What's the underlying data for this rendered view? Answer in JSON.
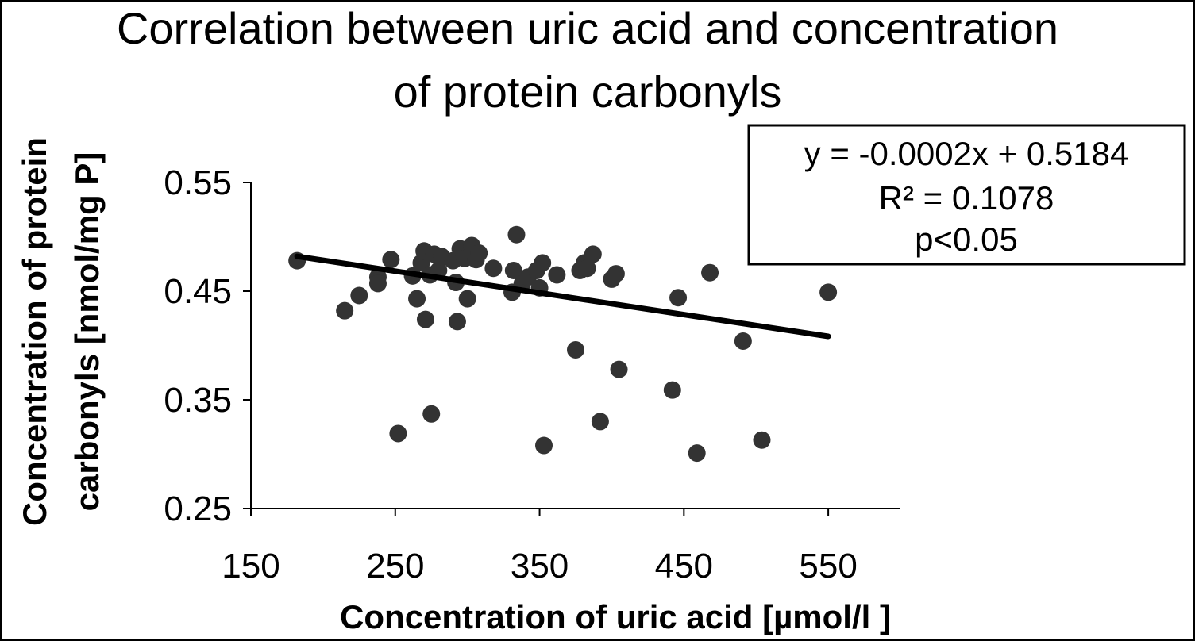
{
  "chart_data": {
    "type": "scatter",
    "title_lines": [
      "Correlation between uric acid and concentration",
      "of protein carbonyls"
    ],
    "xlabel": "Concentration of uric acid [µmol/l ]",
    "ylabel_lines": [
      "Concentration of protein",
      "carbonyls [nmol/mg P]"
    ],
    "xlim": [
      150,
      600
    ],
    "ylim": [
      0.25,
      0.55
    ],
    "xticks": [
      150,
      250,
      350,
      450,
      550
    ],
    "xtick_labels": [
      "150",
      "250",
      "350",
      "450",
      "550"
    ],
    "yticks": [
      0.25,
      0.35,
      0.45,
      0.55
    ],
    "ytick_labels": [
      "0.25",
      "0.35",
      "0.45",
      "0.55"
    ],
    "grid": false,
    "marker_color": "#333333",
    "trendline_color": "#000000",
    "annotation_lines": [
      "y = -0.0002x + 0.5184",
      "R² = 0.1078",
      "p<0.05"
    ],
    "annotation_colors": [
      "#000000",
      "#000000",
      "#ff0000"
    ],
    "trendline": {
      "slope": -0.0002,
      "intercept": 0.5184,
      "x_range": [
        182,
        550
      ]
    },
    "points": [
      {
        "x": 182,
        "y": 0.478
      },
      {
        "x": 215,
        "y": 0.432
      },
      {
        "x": 225,
        "y": 0.446
      },
      {
        "x": 238,
        "y": 0.463
      },
      {
        "x": 238,
        "y": 0.457
      },
      {
        "x": 247,
        "y": 0.479
      },
      {
        "x": 252,
        "y": 0.319
      },
      {
        "x": 262,
        "y": 0.464
      },
      {
        "x": 265,
        "y": 0.443
      },
      {
        "x": 268,
        "y": 0.476
      },
      {
        "x": 270,
        "y": 0.487
      },
      {
        "x": 271,
        "y": 0.424
      },
      {
        "x": 274,
        "y": 0.465
      },
      {
        "x": 275,
        "y": 0.337
      },
      {
        "x": 277,
        "y": 0.484
      },
      {
        "x": 280,
        "y": 0.469
      },
      {
        "x": 282,
        "y": 0.482
      },
      {
        "x": 290,
        "y": 0.478
      },
      {
        "x": 292,
        "y": 0.458
      },
      {
        "x": 293,
        "y": 0.422
      },
      {
        "x": 295,
        "y": 0.489
      },
      {
        "x": 298,
        "y": 0.48
      },
      {
        "x": 300,
        "y": 0.443
      },
      {
        "x": 303,
        "y": 0.492
      },
      {
        "x": 306,
        "y": 0.479
      },
      {
        "x": 308,
        "y": 0.485
      },
      {
        "x": 318,
        "y": 0.471
      },
      {
        "x": 331,
        "y": 0.449
      },
      {
        "x": 332,
        "y": 0.469
      },
      {
        "x": 334,
        "y": 0.502
      },
      {
        "x": 338,
        "y": 0.457
      },
      {
        "x": 342,
        "y": 0.463
      },
      {
        "x": 348,
        "y": 0.469
      },
      {
        "x": 350,
        "y": 0.453
      },
      {
        "x": 352,
        "y": 0.476
      },
      {
        "x": 353,
        "y": 0.308
      },
      {
        "x": 362,
        "y": 0.465
      },
      {
        "x": 375,
        "y": 0.396
      },
      {
        "x": 378,
        "y": 0.469
      },
      {
        "x": 381,
        "y": 0.476
      },
      {
        "x": 383,
        "y": 0.471
      },
      {
        "x": 387,
        "y": 0.484
      },
      {
        "x": 392,
        "y": 0.33
      },
      {
        "x": 400,
        "y": 0.461
      },
      {
        "x": 403,
        "y": 0.466
      },
      {
        "x": 405,
        "y": 0.378
      },
      {
        "x": 442,
        "y": 0.359
      },
      {
        "x": 446,
        "y": 0.444
      },
      {
        "x": 459,
        "y": 0.301
      },
      {
        "x": 468,
        "y": 0.467
      },
      {
        "x": 491,
        "y": 0.404
      },
      {
        "x": 504,
        "y": 0.313
      },
      {
        "x": 550,
        "y": 0.449
      }
    ]
  }
}
